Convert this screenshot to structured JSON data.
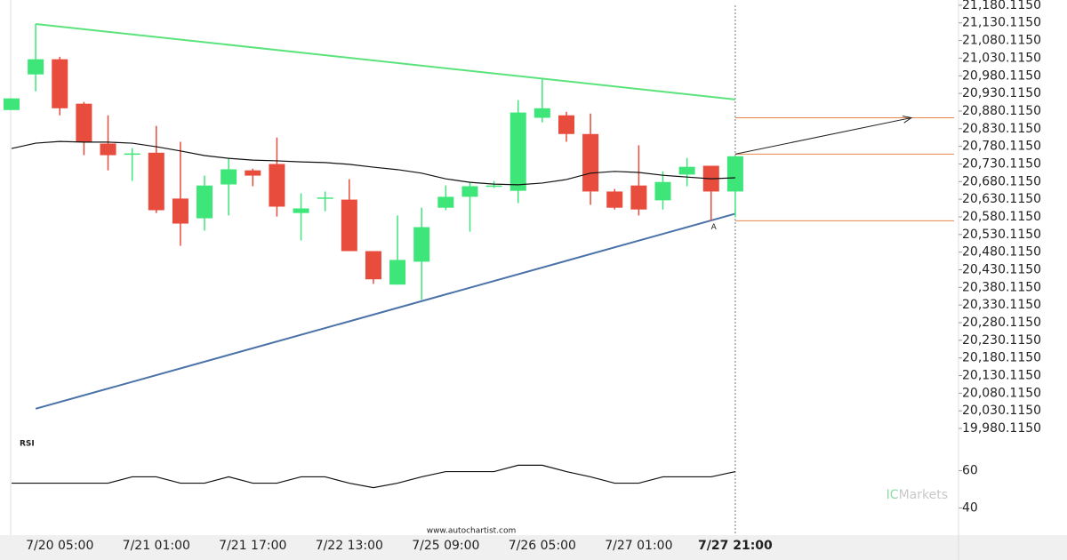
{
  "chart_data": {
    "type": "candlestick",
    "categories": [
      null,
      null,
      "7/20 05:00",
      null,
      null,
      null,
      "7/21 01:00",
      null,
      null,
      null,
      "7/21 17:00",
      null,
      null,
      null,
      "7/22 13:00",
      null,
      null,
      null,
      "7/25 09:00",
      null,
      null,
      null,
      "7/26 05:00",
      null,
      null,
      null,
      "7/27 01:00",
      null,
      null,
      null,
      "7/27 21:00"
    ],
    "open": [
      20883,
      20984,
      21027,
      20901,
      20788,
      20757,
      20762,
      20632,
      20576,
      20672,
      20712,
      20730,
      20591,
      20632,
      20629,
      20483,
      20388,
      20453,
      20606,
      20637,
      20667,
      20654,
      20861,
      20868,
      20815,
      20652,
      20669,
      20627,
      20700,
      20725,
      20652
    ],
    "high": [
      20916,
      21127,
      21034,
      20906,
      20868,
      20775,
      20838,
      20793,
      20697,
      20747,
      20717,
      20805,
      20647,
      20652,
      20687,
      20483,
      20584,
      20606,
      20669,
      20679,
      20682,
      20911,
      20974,
      20878,
      20873,
      20659,
      20783,
      20709,
      20747,
      20725,
      20752
    ],
    "low": [
      20883,
      20936,
      20868,
      20755,
      20712,
      20682,
      20591,
      20498,
      20541,
      20584,
      20667,
      20581,
      20513,
      20596,
      20483,
      20390,
      20388,
      20345,
      20599,
      20538,
      20662,
      20619,
      20848,
      20793,
      20614,
      20601,
      20584,
      20601,
      20667,
      20569,
      20579
    ],
    "close": [
      20916,
      21027,
      20888,
      20793,
      20755,
      20760,
      20599,
      20561,
      20669,
      20715,
      20697,
      20609,
      20604,
      20635,
      20483,
      20403,
      20458,
      20551,
      20637,
      20667,
      20669,
      20876,
      20888,
      20815,
      20652,
      20606,
      20601,
      20679,
      20722,
      20652,
      20752
    ],
    "up_color": "#3ee67a",
    "down_color": "#e84c3d",
    "moving_average": {
      "color": "#111111",
      "values": [
        20774,
        20789,
        20794,
        20792,
        20792,
        20789,
        20779,
        20767,
        20754,
        20746,
        20741,
        20739,
        20736,
        20734,
        20729,
        20721,
        20714,
        20704,
        20688,
        20678,
        20673,
        20671,
        20676,
        20686,
        20704,
        20709,
        20706,
        20698,
        20693,
        20688,
        20691
      ]
    },
    "resistance": {
      "color": "#5be37b",
      "x": [
        1,
        30
      ],
      "values": [
        21127,
        20913
      ]
    },
    "support": {
      "color": "#4a72a8",
      "x": [
        1,
        30
      ],
      "values": [
        20036,
        20589
      ]
    },
    "levels": {
      "color": "#e8864a",
      "values": [
        20861,
        20758,
        20569
      ]
    },
    "forecast": {
      "color": "#222222",
      "x": [
        30,
        37.3
      ],
      "values": [
        20758,
        20861
      ]
    },
    "pattern_label": "A",
    "ylim": [
      19960,
      21195
    ],
    "yticks": [
      {
        "value": 21180.115,
        "label": "21,180.1150"
      },
      {
        "value": 21130.115,
        "label": "21,130.1150"
      },
      {
        "value": 21080.115,
        "label": "21,080.1150"
      },
      {
        "value": 21030.115,
        "label": "21,030.1150"
      },
      {
        "value": 20980.115,
        "label": "20,980.1150"
      },
      {
        "value": 20930.115,
        "label": "20,930.1150"
      },
      {
        "value": 20880.115,
        "label": "20,880.1150"
      },
      {
        "value": 20830.115,
        "label": "20,830.1150"
      },
      {
        "value": 20780.115,
        "label": "20,780.1150"
      },
      {
        "value": 20730.115,
        "label": "20,730.1150"
      },
      {
        "value": 20680.115,
        "label": "20,680.1150"
      },
      {
        "value": 20630.115,
        "label": "20,630.1150"
      },
      {
        "value": 20580.115,
        "label": "20,580.1150"
      },
      {
        "value": 20530.115,
        "label": "20,530.1150"
      },
      {
        "value": 20480.115,
        "label": "20,480.1150"
      },
      {
        "value": 20430.115,
        "label": "20,430.1150"
      },
      {
        "value": 20380.115,
        "label": "20,380.1150"
      },
      {
        "value": 20330.115,
        "label": "20,330.1150"
      },
      {
        "value": 20280.115,
        "label": "20,280.1150"
      },
      {
        "value": 20230.115,
        "label": "20,230.1150"
      },
      {
        "value": 20180.115,
        "label": "20,180.1150"
      },
      {
        "value": 20130.115,
        "label": "20,130.1150"
      },
      {
        "value": 20080.115,
        "label": "20,080.1150"
      },
      {
        "value": 20030.115,
        "label": "20,030.1150"
      },
      {
        "value": 19980.115,
        "label": "19,980.1150"
      }
    ],
    "rsi": {
      "title": "RSI",
      "color": "#111111",
      "ylim": [
        25,
        80
      ],
      "yticks": [
        60,
        40
      ],
      "values": [
        53.3,
        53.3,
        53.3,
        53.3,
        53.3,
        56.7,
        56.7,
        53.3,
        53.3,
        56.7,
        53.3,
        53.3,
        56.7,
        56.7,
        53.3,
        50.9,
        53.3,
        56.7,
        59.5,
        59.5,
        59.5,
        62.9,
        62.9,
        59.5,
        56.7,
        53.3,
        53.3,
        56.7,
        56.7,
        56.7,
        59.5
      ]
    },
    "source": "www.autochartist.com",
    "brand": {
      "prefix": "IC",
      "name": "Markets"
    }
  }
}
